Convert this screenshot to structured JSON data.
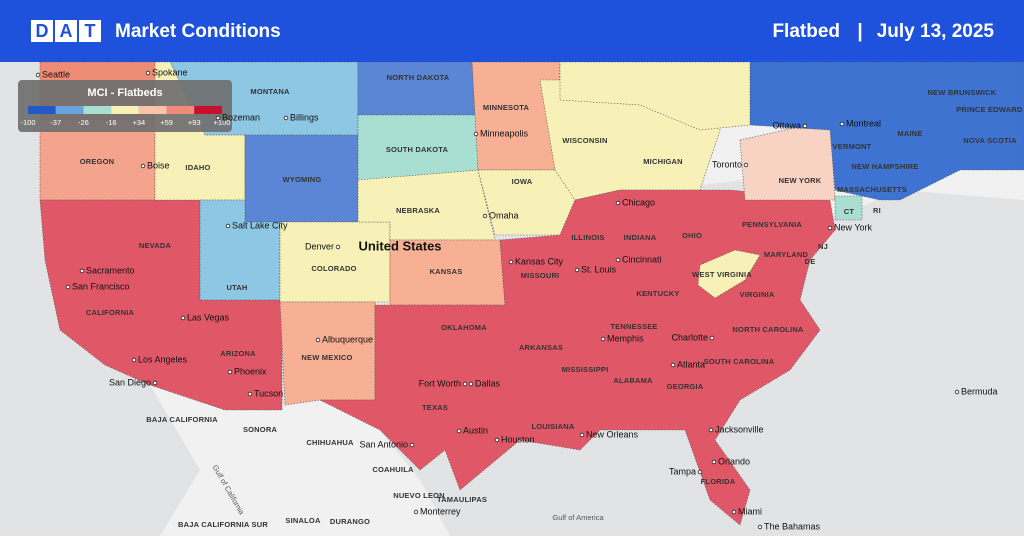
{
  "header": {
    "logo": "DAT",
    "title": "Market Conditions",
    "equipment": "Flatbed",
    "separator": "|",
    "date": "July 13, 2025"
  },
  "legend": {
    "title": "MCI - Flatbeds",
    "ticks": [
      -100,
      -37,
      -26,
      -16,
      {
        "value": 34,
        "label": "+34"
      },
      {
        "value": 59,
        "label": "+59"
      },
      {
        "value": 93,
        "label": "+93"
      },
      {
        "value": 100,
        "label": "+100"
      }
    ],
    "colors": [
      "#2458c6",
      "#6aa4dc",
      "#a9dfd2",
      "#f7f1b8",
      "#f7c4aa",
      "#ef8c78",
      "#c8102e"
    ]
  },
  "country_label": "United States",
  "regions": [
    "MONTANA",
    "NORTH DAKOTA",
    "OREGON",
    "IDAHO",
    "WYOMING",
    "SOUTH DAKOTA",
    "NEBRASKA",
    "MINNESOTA",
    "WISCONSIN",
    "MICHIGAN",
    "IOWA",
    "NEVADA",
    "UTAH",
    "COLORADO",
    "KANSAS",
    "CALIFORNIA",
    "ARIZONA",
    "NEW MEXICO",
    "OKLAHOMA",
    "TEXAS",
    "MISSOURI",
    "ILLINOIS",
    "INDIANA",
    "OHIO",
    "PENNSYLVANIA",
    "WEST VIRGINIA",
    "KENTUCKY",
    "VIRGINIA",
    "TENNESSEE",
    "ARKANSAS",
    "NORTH CAROLINA",
    "SOUTH CAROLINA",
    "MISSISSIPPI",
    "ALABAMA",
    "GEORGIA",
    "LOUISIANA",
    "FLORIDA",
    "NEW YORK",
    "MARYLAND",
    "NJ",
    "DE",
    "CT",
    "RI",
    "MASSACHUSETTS",
    "VERMONT",
    "NEW HAMPSHIRE",
    "MAINE",
    "NEW BRUNSWICK",
    "PRINCE EDWARD ISLAND",
    "NOVA SCOTIA",
    "BAJA CALIFORNIA",
    "SONORA",
    "CHIHUAHUA",
    "COAHUILA",
    "NUEVO LEON",
    "BAJA CALIFORNIA SUR",
    "SINALOA",
    "DURANGO",
    "TAMAULIPAS",
    "Gulf of California",
    "Gulf of America"
  ],
  "cities": [
    "Seattle",
    "Spokane",
    "Bozeman",
    "Billings",
    "Boise",
    "Salt Lake City",
    "Denver",
    "Minneapolis",
    "Omaha",
    "Chicago",
    "Toronto",
    "Ottawa",
    "Montreal",
    "Sacramento",
    "San Francisco",
    "Las Vegas",
    "Los Angeles",
    "San Diego",
    "Phoenix",
    "Tucson",
    "Albuquerque",
    "Kansas City",
    "St. Louis",
    "Cincinnati",
    "Charlotte",
    "Memphis",
    "Atlanta",
    "Fort Worth",
    "Dallas",
    "Austin",
    "Houston",
    "San Antonio",
    "New Orleans",
    "Jacksonville",
    "Orlando",
    "Tampa",
    "Miami",
    "New York",
    "Monterrey",
    "The Bahamas",
    "Bermuda"
  ]
}
